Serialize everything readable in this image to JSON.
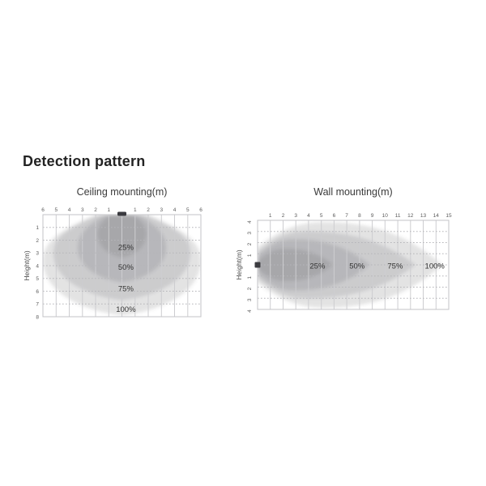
{
  "page": {
    "heading": "Detection pattern"
  },
  "colors": {
    "zone_fill": "#53535b",
    "zone_layer_opacity": 0.165,
    "grid_vertical": "#cdcdd0",
    "grid_horizontal": "#b6b6ba",
    "plot_border": "#c3c3c7",
    "tick_text": "#5a5a5a",
    "zone_label_text": "#333333",
    "axis_title_text": "#4a4a4a",
    "sensor": "#3b3b40",
    "title_text": "#3a3a3a",
    "heading_text": "#232323"
  },
  "chart_data": [
    {
      "id": "ceiling",
      "type": "area",
      "title": "Ceiling mounting(m)",
      "ylabel": "Height(m)",
      "orientation": "sensor-on-ceiling-spreading-down",
      "grid": true,
      "sensor_icon": "ceiling-sensor-icon",
      "x_axis": {
        "min_m": -6,
        "max_m": 6,
        "tick_labels": [
          "6",
          "5",
          "4",
          "3",
          "2",
          "1",
          "1",
          "2",
          "3",
          "4",
          "5",
          "6"
        ],
        "tick_positions_m": [
          -6,
          -5,
          -4,
          -3,
          -2,
          -1,
          1,
          2,
          3,
          4,
          5,
          6
        ]
      },
      "y_axis": {
        "min_m": 0,
        "max_m": 8,
        "tick_labels": [
          "1",
          "2",
          "3",
          "4",
          "5",
          "6",
          "7",
          "8"
        ],
        "tick_positions_m": [
          1,
          2,
          3,
          4,
          5,
          6,
          7,
          8
        ]
      },
      "zones": [
        {
          "label": "100%",
          "top_half_width_m": 2.0,
          "max_half_width_m": 6.0,
          "widest_at_m": 3.6,
          "reach_m": 7.9,
          "label_pos": {
            "x_m": 0.3,
            "y_m": 7.4
          }
        },
        {
          "label": "75%",
          "top_half_width_m": 1.6,
          "max_half_width_m": 5.2,
          "widest_at_m": 3.0,
          "reach_m": 6.7,
          "label_pos": {
            "x_m": 0.3,
            "y_m": 5.8
          }
        },
        {
          "label": "50%",
          "top_half_width_m": 1.2,
          "max_half_width_m": 3.35,
          "widest_at_m": 2.6,
          "reach_m": 5.3,
          "label_pos": {
            "x_m": 0.3,
            "y_m": 4.1
          }
        },
        {
          "label": "25%",
          "top_half_width_m": 0.8,
          "max_half_width_m": 1.85,
          "widest_at_m": 1.5,
          "reach_m": 3.35,
          "label_pos": {
            "x_m": 0.3,
            "y_m": 2.55
          }
        }
      ]
    },
    {
      "id": "wall",
      "type": "area",
      "title": "Wall mounting(m)",
      "ylabel": "Height(m)",
      "orientation": "sensor-on-wall-spreading-right",
      "grid": true,
      "sensor_icon": "wall-sensor-icon",
      "x_axis": {
        "min_m": 0,
        "max_m": 15,
        "tick_labels": [
          "1",
          "2",
          "3",
          "4",
          "5",
          "6",
          "7",
          "8",
          "9",
          "10",
          "11",
          "12",
          "13",
          "14",
          "15"
        ],
        "tick_positions_m": [
          1,
          2,
          3,
          4,
          5,
          6,
          7,
          8,
          9,
          10,
          11,
          12,
          13,
          14,
          15
        ]
      },
      "y_axis": {
        "min_m": -4,
        "max_m": 4,
        "tick_labels": [
          "4",
          "3",
          "2",
          "1",
          "1",
          "2",
          "3",
          "4"
        ],
        "tick_positions_m": [
          4,
          3,
          2,
          1,
          -1,
          -2,
          -3,
          -4
        ],
        "labels_rotated": true
      },
      "zones": [
        {
          "label": "100%",
          "start_half_height_m": 1.6,
          "max_half_height_m": 3.85,
          "widest_at_m": 5.3,
          "reach_m": 14.5,
          "label_pos": {
            "x_m": 13.9,
            "y_m": 0.1
          }
        },
        {
          "label": "75%",
          "start_half_height_m": 1.2,
          "max_half_height_m": 3.0,
          "widest_at_m": 3.9,
          "reach_m": 12.4,
          "label_pos": {
            "x_m": 10.8,
            "y_m": 0.1
          }
        },
        {
          "label": "50%",
          "start_half_height_m": 0.8,
          "max_half_height_m": 2.3,
          "widest_at_m": 2.9,
          "reach_m": 8.8,
          "label_pos": {
            "x_m": 7.8,
            "y_m": 0.1
          }
        },
        {
          "label": "25%",
          "start_half_height_m": 0.3,
          "max_half_height_m": 1.45,
          "widest_at_m": 2.2,
          "reach_m": 5.9,
          "label_pos": {
            "x_m": 4.7,
            "y_m": 0.1
          }
        }
      ]
    }
  ]
}
